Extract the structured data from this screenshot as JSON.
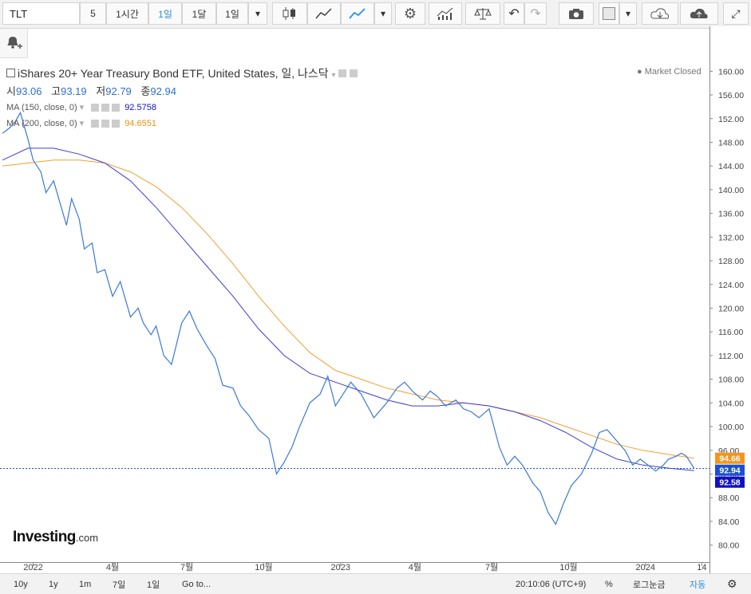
{
  "toolbar": {
    "symbol": "TLT",
    "intervals": [
      "5",
      "1시간",
      "1일",
      "1달",
      "1일"
    ],
    "active_interval": "1일"
  },
  "legend": {
    "title": "iShares 20+ Year Treasury Bond ETF, United States, 일, 나스닥",
    "ohlc": [
      {
        "label": "시",
        "value": "93.06"
      },
      {
        "label": "고",
        "value": "93.19"
      },
      {
        "label": "저",
        "value": "92.79"
      },
      {
        "label": "종",
        "value": "92.94"
      }
    ],
    "ma150": {
      "label": "MA (150, close, 0)",
      "value": "92.5758"
    },
    "ma200": {
      "label": "MA (200, close, 0)",
      "value": "94.6551"
    },
    "market_status": "● Market Closed"
  },
  "watermark": {
    "brand": "Investing",
    "suffix": ".com"
  },
  "bottom_bar": {
    "ranges": [
      "10y",
      "1y",
      "1m",
      "7일",
      "1일"
    ],
    "goto": "Go to...",
    "clock": "20:10:06 (UTC+9)",
    "percent": "%",
    "log": "로그눈금",
    "auto": "자동"
  },
  "colors": {
    "price": "#3b78d8",
    "ma150": "#3d3dd6",
    "ma200": "#f0a030",
    "badge_ma200": "#f7941d",
    "badge_price": "#1c4fd1",
    "badge_ma150": "#1010c8"
  },
  "chart_data": {
    "type": "line",
    "series": [
      {
        "name": "Price",
        "values": [
          [
            0,
            149.5
          ],
          [
            0.3,
            150.5
          ],
          [
            0.5,
            151.5
          ],
          [
            0.7,
            153.0
          ],
          [
            1.0,
            148.5
          ],
          [
            1.2,
            145.0
          ],
          [
            1.5,
            143.0
          ],
          [
            1.7,
            139.5
          ],
          [
            2.0,
            141.5
          ],
          [
            2.3,
            137.0
          ],
          [
            2.5,
            134.0
          ],
          [
            2.7,
            138.5
          ],
          [
            3.0,
            135.0
          ],
          [
            3.2,
            130.0
          ],
          [
            3.5,
            131.0
          ],
          [
            3.7,
            126.0
          ],
          [
            4.0,
            126.5
          ],
          [
            4.3,
            122.0
          ],
          [
            4.6,
            124.5
          ],
          [
            5.0,
            118.5
          ],
          [
            5.3,
            120.0
          ],
          [
            5.5,
            117.5
          ],
          [
            5.8,
            115.5
          ],
          [
            6.0,
            117.0
          ],
          [
            6.3,
            112.0
          ],
          [
            6.6,
            110.5
          ],
          [
            7.0,
            117.5
          ],
          [
            7.3,
            119.5
          ],
          [
            7.6,
            116.5
          ],
          [
            8.0,
            113.5
          ],
          [
            8.3,
            111.5
          ],
          [
            8.6,
            107.0
          ],
          [
            9.0,
            106.5
          ],
          [
            9.3,
            103.5
          ],
          [
            9.6,
            102.0
          ],
          [
            10.0,
            99.5
          ],
          [
            10.4,
            98.0
          ],
          [
            10.7,
            92.0
          ],
          [
            11.0,
            94.0
          ],
          [
            11.3,
            96.5
          ],
          [
            11.6,
            100.0
          ],
          [
            12.0,
            104.0
          ],
          [
            12.4,
            105.5
          ],
          [
            12.7,
            108.5
          ],
          [
            13.0,
            103.5
          ],
          [
            13.3,
            105.5
          ],
          [
            13.6,
            107.5
          ],
          [
            14.0,
            105.5
          ],
          [
            14.5,
            101.5
          ],
          [
            15.0,
            104.0
          ],
          [
            15.4,
            106.5
          ],
          [
            15.7,
            107.5
          ],
          [
            16.0,
            106.0
          ],
          [
            16.4,
            104.5
          ],
          [
            16.7,
            106.0
          ],
          [
            17.0,
            105.0
          ],
          [
            17.3,
            103.5
          ],
          [
            17.7,
            104.5
          ],
          [
            18.0,
            103.0
          ],
          [
            18.3,
            102.5
          ],
          [
            18.6,
            101.5
          ],
          [
            19.0,
            103.0
          ],
          [
            19.4,
            96.5
          ],
          [
            19.7,
            93.5
          ],
          [
            20.0,
            95.0
          ],
          [
            20.3,
            93.5
          ],
          [
            20.7,
            90.5
          ],
          [
            21.0,
            89.0
          ],
          [
            21.3,
            85.5
          ],
          [
            21.6,
            83.5
          ],
          [
            21.9,
            87.0
          ],
          [
            22.2,
            90.0
          ],
          [
            22.6,
            92.0
          ],
          [
            23.0,
            95.5
          ],
          [
            23.3,
            99.0
          ],
          [
            23.6,
            99.5
          ],
          [
            24.0,
            97.5
          ],
          [
            24.3,
            96.0
          ],
          [
            24.6,
            93.5
          ],
          [
            24.9,
            94.5
          ],
          [
            25.2,
            93.5
          ],
          [
            25.5,
            92.5
          ],
          [
            25.8,
            93.5
          ],
          [
            26.0,
            94.5
          ],
          [
            26.3,
            95.0
          ],
          [
            26.5,
            95.5
          ],
          [
            26.7,
            95.0
          ],
          [
            27.0,
            92.94
          ]
        ]
      },
      {
        "name": "MA (150, close, 0)",
        "values": [
          [
            0,
            145.0
          ],
          [
            1.0,
            147.0
          ],
          [
            2.0,
            147.0
          ],
          [
            3.0,
            146.0
          ],
          [
            4.0,
            144.5
          ],
          [
            5.0,
            141.5
          ],
          [
            6.0,
            137.0
          ],
          [
            7.0,
            132.0
          ],
          [
            8.0,
            127.0
          ],
          [
            9.0,
            122.0
          ],
          [
            10.0,
            116.5
          ],
          [
            11.0,
            112.0
          ],
          [
            12.0,
            109.0
          ],
          [
            13.0,
            107.5
          ],
          [
            14.0,
            106.0
          ],
          [
            15.0,
            104.5
          ],
          [
            16.0,
            103.5
          ],
          [
            17.0,
            103.5
          ],
          [
            18.0,
            104.0
          ],
          [
            19.0,
            103.5
          ],
          [
            20.0,
            102.5
          ],
          [
            21.0,
            101.0
          ],
          [
            22.0,
            99.0
          ],
          [
            23.0,
            96.5
          ],
          [
            24.0,
            94.5
          ],
          [
            25.0,
            93.5
          ],
          [
            26.0,
            93.0
          ],
          [
            27.0,
            92.58
          ]
        ]
      },
      {
        "name": "MA (200, close, 0)",
        "values": [
          [
            0,
            144.0
          ],
          [
            1.0,
            144.5
          ],
          [
            2.0,
            145.0
          ],
          [
            3.0,
            145.0
          ],
          [
            4.0,
            144.5
          ],
          [
            5.0,
            143.0
          ],
          [
            6.0,
            140.5
          ],
          [
            7.0,
            137.0
          ],
          [
            8.0,
            132.5
          ],
          [
            9.0,
            127.5
          ],
          [
            10.0,
            122.0
          ],
          [
            11.0,
            117.0
          ],
          [
            12.0,
            112.5
          ],
          [
            13.0,
            109.5
          ],
          [
            14.0,
            108.0
          ],
          [
            15.0,
            106.5
          ],
          [
            16.0,
            105.5
          ],
          [
            17.0,
            104.5
          ],
          [
            18.0,
            104.0
          ],
          [
            19.0,
            103.5
          ],
          [
            20.0,
            102.5
          ],
          [
            21.0,
            101.5
          ],
          [
            22.0,
            100.0
          ],
          [
            23.0,
            98.5
          ],
          [
            24.0,
            97.0
          ],
          [
            25.0,
            96.0
          ],
          [
            26.0,
            95.3
          ],
          [
            27.0,
            94.66
          ]
        ]
      }
    ],
    "x_ticks": [
      {
        "x": 1.2,
        "label": "2022"
      },
      {
        "x": 4.3,
        "label": "4월"
      },
      {
        "x": 7.2,
        "label": "7월"
      },
      {
        "x": 10.2,
        "label": "10월"
      },
      {
        "x": 13.2,
        "label": "2023"
      },
      {
        "x": 16.1,
        "label": "4월"
      },
      {
        "x": 19.1,
        "label": "7월"
      },
      {
        "x": 22.1,
        "label": "10월"
      },
      {
        "x": 25.1,
        "label": "2024"
      },
      {
        "x": 27.3,
        "label": "14"
      }
    ],
    "y_ticks": [
      80,
      84,
      88,
      92,
      96,
      100,
      104,
      108,
      112,
      116,
      120,
      124,
      128,
      132,
      136,
      140,
      144,
      148,
      152,
      156,
      160
    ],
    "xlim": [
      0,
      27.6
    ],
    "ylim": [
      78.2,
      162.2
    ],
    "last_price": 92.94,
    "badges": [
      {
        "value": 94.66,
        "label": "94.66",
        "role": "ma200"
      },
      {
        "value": 92.94,
        "label": "92.94",
        "role": "price"
      },
      {
        "value": 92.58,
        "label": "92.58",
        "role": "ma150"
      }
    ]
  }
}
